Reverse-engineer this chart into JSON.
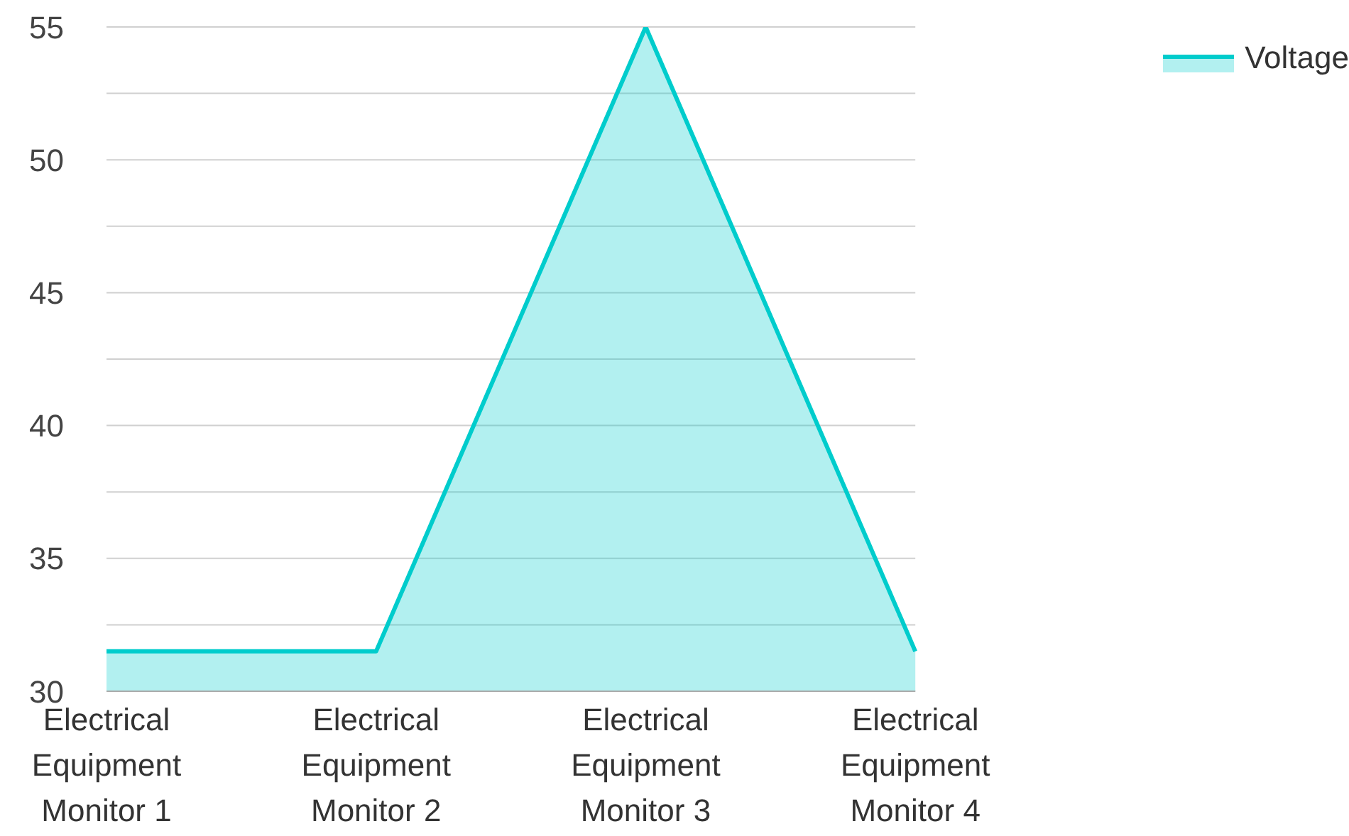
{
  "chart_data": {
    "type": "area",
    "categories": [
      "Electrical Equipment Monitor 1",
      "Electrical Equipment Monitor 2",
      "Electrical Equipment Monitor 3",
      "Electrical Equipment Monitor 4"
    ],
    "series": [
      {
        "name": "Voltage",
        "color": "#00cccc",
        "values": [
          31.5,
          31.5,
          55,
          31.5
        ]
      }
    ],
    "ylim": [
      30,
      55
    ],
    "yticks": [
      30,
      {
        "value": 32.5,
        "label": null
      },
      35,
      {
        "value": 37.5,
        "label": null
      },
      40,
      {
        "value": 42.5,
        "label": null
      },
      45,
      {
        "value": 47.5,
        "label": null
      },
      50,
      {
        "value": 52.5,
        "label": null
      },
      55
    ],
    "grid": "y",
    "legend": "top right"
  }
}
